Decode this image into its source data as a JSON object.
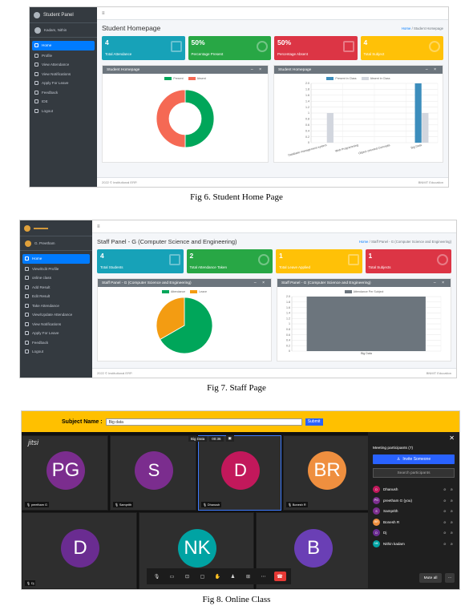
{
  "fig6": {
    "caption": "Fig 6. Student Home Page",
    "brand": "Student Panel",
    "user": "Kadam, Nithin",
    "menu": [
      {
        "label": "Home",
        "icon": "home-icon"
      },
      {
        "label": "Profile",
        "icon": "user-icon"
      },
      {
        "label": "View Attendance",
        "icon": "calendar-icon"
      },
      {
        "label": "View Notifications",
        "icon": "bell-icon"
      },
      {
        "label": "Apply For Leave",
        "icon": "leave-icon"
      },
      {
        "label": "Feedback",
        "icon": "feedback-icon"
      },
      {
        "label": "IDE",
        "icon": "code-icon"
      },
      {
        "label": "Logout",
        "icon": "logout-icon"
      }
    ],
    "page_title": "Student Homepage",
    "crumb_link": "Home",
    "crumb_current": "Student Homepage",
    "boxes": [
      {
        "num": "4",
        "label": "Total Attendance",
        "color": "#17a2b8"
      },
      {
        "num": "50%",
        "label": "Percentage Present",
        "color": "#28a745"
      },
      {
        "num": "50%",
        "label": "Percentage Absent",
        "color": "#dc3545"
      },
      {
        "num": "4",
        "label": "Total Subject",
        "color": "#ffc107"
      }
    ],
    "card_left_title": "Student Homepage",
    "card_right_title": "Student Homepage",
    "footer_left": "2022 © Institutional ERP.",
    "footer_right": "BNMIT Education",
    "card_tools": "– ×"
  },
  "fig7": {
    "caption": "Fig 7. Staff  Page",
    "user": "G. Preetham",
    "menu": [
      {
        "label": "Home"
      },
      {
        "label": "View/Edit Profile"
      },
      {
        "label": "online class"
      },
      {
        "label": "Add Result"
      },
      {
        "label": "Edit Result"
      },
      {
        "label": "Take Attendance"
      },
      {
        "label": "View/Update Attendance"
      },
      {
        "label": "View Notifications"
      },
      {
        "label": "Apply For Leave"
      },
      {
        "label": "Feedback"
      },
      {
        "label": "Logout"
      }
    ],
    "page_title": "Staff Panel - G (Computer Science and Engineering)",
    "crumb_link": "Home",
    "crumb_current": "Staff Panel - G (Computer Science and Engineering)",
    "boxes": [
      {
        "num": "4",
        "label": "Total Students",
        "color": "#17a2b8"
      },
      {
        "num": "2",
        "label": "Total Attendance Taken",
        "color": "#28a745"
      },
      {
        "num": "1",
        "label": "Total Leave Applied",
        "color": "#ffc107"
      },
      {
        "num": "1",
        "label": "Total Subjects",
        "color": "#dc3545"
      }
    ],
    "card_left_title": "Staff Panel - G (Computer Science and Engineering)",
    "card_right_title": "Staff Panel - G (Computer Science and Engineering)",
    "footer_left": "2022 © Institutional ERP.",
    "footer_right": "BNMIT Education",
    "card_tools": "– ×"
  },
  "fig8": {
    "caption": "Fig 8. Online  Class",
    "subject_label": "Subject Name :",
    "subject_value": "Big data",
    "submit_label": "Submit",
    "brand": "jitsi",
    "meeting_title": "Big Data",
    "meeting_time": "00:36",
    "tiles": [
      {
        "initials": "PG",
        "name": "preetham G",
        "color": "#7b2d8e"
      },
      {
        "initials": "S",
        "name": "Samprith",
        "color": "#7b2d8e"
      },
      {
        "initials": "D",
        "name": "Dhanush",
        "color": "#c2185b"
      },
      {
        "initials": "BR",
        "name": "Bonesh R",
        "color": "#ef8f3f"
      },
      {
        "initials": "D",
        "name": "Dj",
        "color": "#6a2c91"
      },
      {
        "initials": "NK",
        "name": "",
        "color": "#00a3a3"
      },
      {
        "initials": "B",
        "name": "",
        "color": "#6a3fb5"
      }
    ],
    "panel": {
      "title": "Meeting participants (7)",
      "invite": "Invite Someone",
      "search_placeholder": "Search participants",
      "participants": [
        {
          "initials": "D",
          "name": "Dhanush",
          "color": "#c2185b"
        },
        {
          "initials": "PG",
          "name": "preetham G (you)",
          "color": "#7b2d8e"
        },
        {
          "initials": "S",
          "name": "Samprith",
          "color": "#7b2d8e"
        },
        {
          "initials": "BR",
          "name": "Bonesh R",
          "color": "#ef8f3f"
        },
        {
          "initials": "D",
          "name": "Dj",
          "color": "#6a2c91"
        },
        {
          "initials": "NK",
          "name": "Nithin kadam",
          "color": "#00a3a3"
        }
      ],
      "mute_all": "Mute all",
      "more": "⋯",
      "close": "✕"
    }
  },
  "chart_data": [
    {
      "type": "pie",
      "categories": [
        "Present",
        "Absent"
      ],
      "values": [
        50,
        50
      ],
      "colors": [
        "#00a65a",
        "#f56954"
      ],
      "legend": "top"
    },
    {
      "type": "bar",
      "categories": [
        "Database management system",
        "Web Programming",
        "Object oriented Concepts",
        "Big Data"
      ],
      "series": [
        {
          "name": "Present in Class",
          "values": [
            0,
            0,
            0,
            2
          ],
          "color": "#3c8dbc"
        },
        {
          "name": "Absent in Class",
          "values": [
            1,
            0,
            0,
            1
          ],
          "color": "#d2d6de"
        }
      ],
      "ylim": [
        0,
        2
      ],
      "yticks": [
        "0",
        "0.2",
        "0.4",
        "0.6",
        "0.8",
        "1",
        "1.2",
        "1.4",
        "1.6",
        "1.8",
        "2.0"
      ],
      "legend": "top"
    },
    {
      "type": "pie",
      "categories": [
        "Attendance",
        "Leave"
      ],
      "values": [
        2,
        1
      ],
      "colors": [
        "#00a65a",
        "#f39c12"
      ],
      "legend": "top"
    },
    {
      "type": "bar",
      "categories": [
        "Big Data"
      ],
      "series": [
        {
          "name": "Attendance Per Subject",
          "values": [
            2
          ],
          "color": "#6c757d"
        }
      ],
      "ylim": [
        0,
        2
      ],
      "yticks": [
        "0",
        "0.2",
        "0.4",
        "0.6",
        "0.8",
        "1",
        "1.2",
        "1.4",
        "1.6",
        "1.8",
        "2.0"
      ],
      "legend": "top"
    }
  ]
}
